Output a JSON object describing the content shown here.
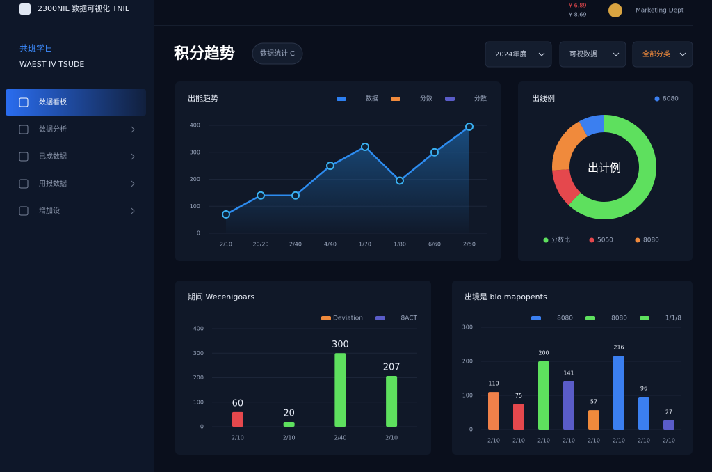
{
  "sidebar": {
    "logo": "2300NIL 数据可视化 TNIL",
    "section_title": "共班学日",
    "section_subtitle": "WAEST IV TSUDE",
    "menu": [
      "数据看板",
      "数据分析",
      "已成数据",
      "用报数据",
      "增加设"
    ]
  },
  "header": {
    "notice_1": "¥ 6.89",
    "notice_2": "¥ 8.69",
    "user": "Marketing Dept",
    "page_title": "积分趋势",
    "badge": "数据统计IC",
    "filters": [
      "2024年度",
      "可视数据",
      "全部分类"
    ]
  },
  "chart_data": [
    {
      "type": "line",
      "title": "出能趋势",
      "legend": [
        {
          "name": "数据",
          "color": "#2d7ff0"
        },
        {
          "name": "分数",
          "color": "#f08a3c"
        },
        {
          "name": "分数",
          "color": "#5a5cc8"
        }
      ],
      "categories": [
        "2/10",
        "20/20",
        "2/40",
        "4/40",
        "1/70",
        "1/80",
        "6/60",
        "2/50"
      ],
      "series": [
        {
          "name": "数据",
          "color": "#2d8cf0",
          "values": [
            70,
            140,
            140,
            250,
            320,
            195,
            300,
            395
          ]
        }
      ],
      "ylim": [
        0,
        400
      ],
      "yticks": [
        0,
        100,
        200,
        300,
        400
      ]
    },
    {
      "type": "pie",
      "title": "出线例",
      "center_label": "出计例",
      "categories": [
        "分数比",
        "5050",
        "8080",
        "8080"
      ],
      "values": [
        62,
        12,
        18,
        8
      ],
      "colors": [
        "#5ee05e",
        "#e5484d",
        "#f08a3c",
        "#3b7ff0"
      ]
    },
    {
      "type": "bar",
      "title": "期间 Wecenigoars",
      "legend": [
        {
          "name": "Deviation",
          "color": "#f08a3c"
        },
        {
          "name": "8ACT",
          "color": "#5a5cc8"
        }
      ],
      "categories": [
        "2/10",
        "2/10",
        "2/40",
        "2/10"
      ],
      "values": [
        60,
        20,
        300,
        207
      ],
      "colors": [
        "#e5484d",
        "#5ee05e",
        "#5ee05e",
        "#5ee05e"
      ],
      "ylim": [
        0,
        400
      ],
      "yticks": [
        0,
        100,
        200,
        300,
        400
      ]
    },
    {
      "type": "bar",
      "title": "出境是 blo mapopents",
      "legend": [
        {
          "name": "8080",
          "color": "#3b7ff0"
        },
        {
          "name": "8080",
          "color": "#5ee05e"
        },
        {
          "name": "1/1/8",
          "color": "#5ee05e"
        }
      ],
      "categories": [
        "2/10",
        "2/10",
        "2/10",
        "2/10",
        "2/10",
        "2/10",
        "2/10",
        "2/10"
      ],
      "values": [
        110,
        75,
        200,
        141,
        57,
        216,
        96,
        27
      ],
      "colors": [
        "#f0814a",
        "#e5484d",
        "#5ee05e",
        "#5a5cc8",
        "#f08a3c",
        "#3b7ff0",
        "#3b7ff0",
        "#5a5cc8"
      ],
      "ylim": [
        0,
        300
      ],
      "yticks": [
        0,
        100,
        200,
        300
      ]
    }
  ]
}
